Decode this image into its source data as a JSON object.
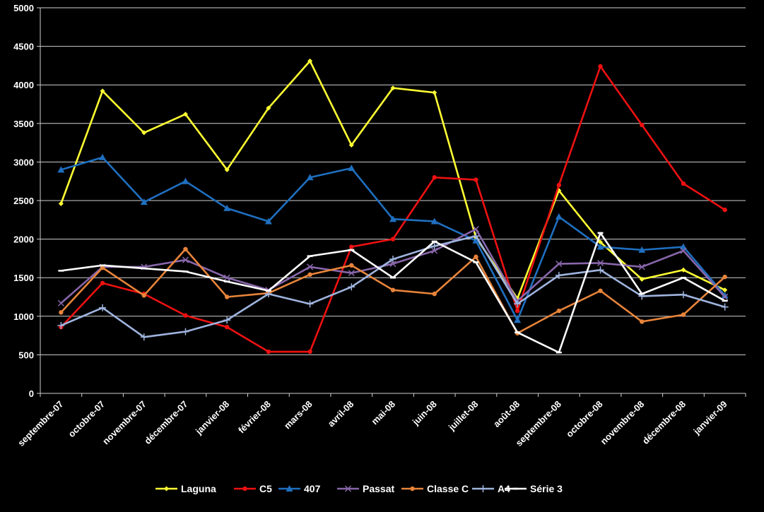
{
  "chart_data": {
    "type": "line",
    "title": "",
    "xlabel": "",
    "ylabel": "",
    "ylim": [
      0,
      5000
    ],
    "y_ticks": [
      0,
      500,
      1000,
      1500,
      2000,
      2500,
      3000,
      3500,
      4000,
      4500,
      5000
    ],
    "grid": true,
    "legend_position": "bottom",
    "background": "#000000",
    "categories": [
      "septembre-07",
      "octobre-07",
      "novembre-07",
      "décembre-07",
      "janvier-08",
      "février-08",
      "mars-08",
      "avril-08",
      "mai-08",
      "juin-08",
      "juillet-08",
      "août-08",
      "septembre-08",
      "octobre-08",
      "novembre-08",
      "décembre-08",
      "janvier-09"
    ],
    "series": [
      {
        "name": "Laguna",
        "color": "#FFFF33",
        "marker": "diamond",
        "values": [
          2460,
          3920,
          3380,
          3620,
          2900,
          3700,
          4310,
          3220,
          3960,
          3900,
          2020,
          1230,
          2630,
          1960,
          1480,
          1600,
          1340
        ]
      },
      {
        "name": "C5",
        "color": "#EE1111",
        "marker": "circle",
        "values": [
          860,
          1430,
          1290,
          1010,
          860,
          540,
          540,
          1900,
          2000,
          2800,
          2770,
          1070,
          2700,
          4240,
          3480,
          2720,
          2380
        ]
      },
      {
        "name": "407",
        "color": "#1F6FBF",
        "marker": "triangle",
        "values": [
          2900,
          3060,
          2480,
          2750,
          2400,
          2230,
          2800,
          2920,
          2260,
          2230,
          1980,
          950,
          2290,
          1900,
          1860,
          1900,
          1270
        ]
      },
      {
        "name": "Passat",
        "color": "#8866AA",
        "marker": "x",
        "values": [
          1170,
          1640,
          1640,
          1730,
          1500,
          1340,
          1640,
          1560,
          1680,
          1850,
          2130,
          1200,
          1680,
          1690,
          1640,
          1850,
          1250
        ]
      },
      {
        "name": "Classe C",
        "color": "#E8843A",
        "marker": "circle",
        "values": [
          1050,
          1630,
          1270,
          1870,
          1250,
          1300,
          1540,
          1660,
          1340,
          1290,
          1770,
          780,
          1070,
          1330,
          930,
          1020,
          1510
        ]
      },
      {
        "name": "A4",
        "color": "#9FB4DE",
        "marker": "plus",
        "values": [
          880,
          1110,
          730,
          800,
          950,
          1290,
          1160,
          1380,
          1740,
          1910,
          2040,
          1160,
          1530,
          1600,
          1260,
          1280,
          1120
        ]
      },
      {
        "name": "Série 3",
        "color": "#FFFFFF",
        "marker": "dash",
        "values": [
          1590,
          1660,
          1620,
          1580,
          1450,
          1330,
          1780,
          1860,
          1500,
          1970,
          1700,
          790,
          530,
          2080,
          1290,
          1500,
          1200
        ]
      }
    ]
  }
}
